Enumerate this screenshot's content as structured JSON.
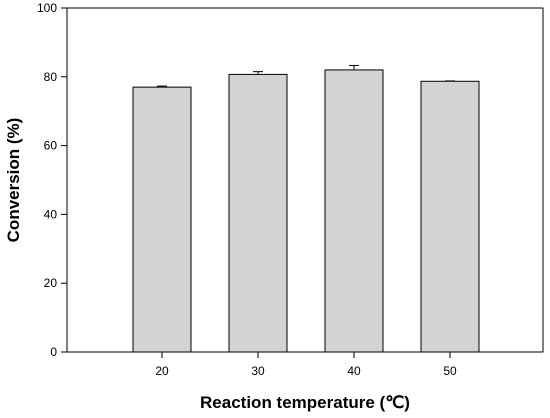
{
  "chart_data": {
    "type": "bar",
    "title": "",
    "xlabel": "Reaction temperature (℃)",
    "ylabel": "Conversion (%)",
    "categories": [
      "20",
      "30",
      "40",
      "50"
    ],
    "values": [
      77.0,
      80.7,
      82.0,
      78.7
    ],
    "errors": [
      0.3,
      0.8,
      1.3,
      0.1
    ],
    "ylim": [
      0,
      100
    ],
    "yticks": [
      0,
      20,
      40,
      60,
      80,
      100
    ],
    "grid": false,
    "bar_color": "#d3d3d3",
    "edge_color": "#000000"
  }
}
